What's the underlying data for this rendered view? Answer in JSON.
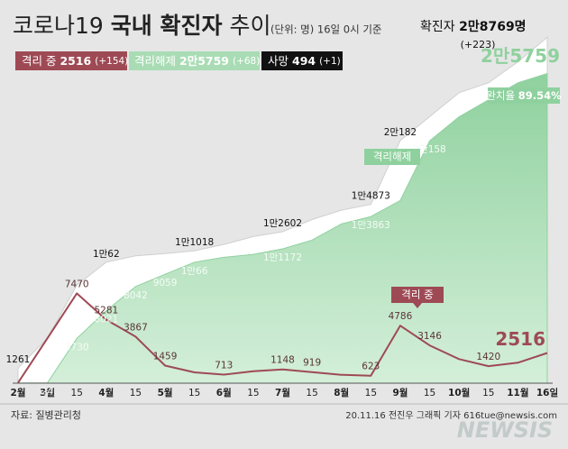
{
  "chart_data": {
    "type": "area",
    "title_parts": [
      "코로나19",
      "국내 확진자",
      "추이"
    ],
    "subtitle": "(단위: 명) 16일 0시 기준",
    "categories": [
      "2월",
      "3월",
      "15",
      "4월",
      "15",
      "5월",
      "15",
      "6월",
      "15",
      "7월",
      "15",
      "8월",
      "15",
      "9월",
      "15",
      "10월",
      "15",
      "11월",
      "16일"
    ],
    "ylim": [
      0,
      30000
    ],
    "series": [
      {
        "name": "확진자",
        "style": "area",
        "color": "#ffffff",
        "values": [
          1261,
          3736,
          8162,
          10062,
          10600,
          10774,
          11018,
          11541,
          12198,
          12602,
          13612,
          14389,
          14873,
          20182,
          22176,
          24164,
          24988,
          26732,
          28769
        ],
        "value_labels": [
          "1261",
          null,
          null,
          "1만62",
          null,
          null,
          "1만1018",
          null,
          null,
          "1만2602",
          null,
          null,
          "1만4873",
          "2만182",
          null,
          null,
          null,
          null,
          null
        ]
      },
      {
        "name": "격리해제",
        "style": "area",
        "color": "#a9dcb4",
        "values": [
          18,
          24,
          3730,
          6021,
          8042,
          9059,
          10066,
          10467,
          10718,
          11172,
          11905,
          13254,
          13863,
          15198,
          20158,
          22158,
          23568,
          24993,
          25759
        ],
        "value_labels": [
          null,
          "24",
          "3730",
          "6021",
          "8042",
          "9059",
          "1만66",
          null,
          null,
          "1만1172",
          null,
          null,
          "1만3863",
          null,
          "2만158",
          null,
          null,
          null,
          "2만5759"
        ]
      },
      {
        "name": "격리 중",
        "style": "line",
        "color": "#9e4a55",
        "values": [
          30,
          3736,
          7470,
          5281,
          3867,
          1459,
          900,
          713,
          1000,
          1148,
          919,
          700,
          623,
          4786,
          3146,
          2000,
          1420,
          1700,
          2516
        ],
        "value_labels": [
          null,
          null,
          "7470",
          "5281",
          "3867",
          "1459",
          null,
          "713",
          null,
          "1148",
          "919",
          null,
          "623",
          "4786",
          "3146",
          null,
          "1420",
          null,
          "2516"
        ]
      }
    ],
    "summary": {
      "total": {
        "name": "확진자",
        "value_label": "2만8769명",
        "change": "(+223)"
      },
      "isolated": {
        "name": "격리 중",
        "value_label": "2516",
        "change": "(+154)"
      },
      "released": {
        "name": "격리해제",
        "value_label": "2만5759",
        "change": "(+68)"
      },
      "deaths": {
        "name": "사망",
        "value_label": "494",
        "change": "(+1)"
      }
    },
    "annotations": {
      "isolated_callout": "격리 중",
      "released_callout": "격리해제",
      "recovery_rate_label": "완치율",
      "recovery_rate": "89.54%"
    },
    "source": "자료: 질병관리청",
    "credit": "20.11.16 전진우 그래픽 기자 616tue@newsis.com",
    "watermark": "NEWSIS"
  }
}
